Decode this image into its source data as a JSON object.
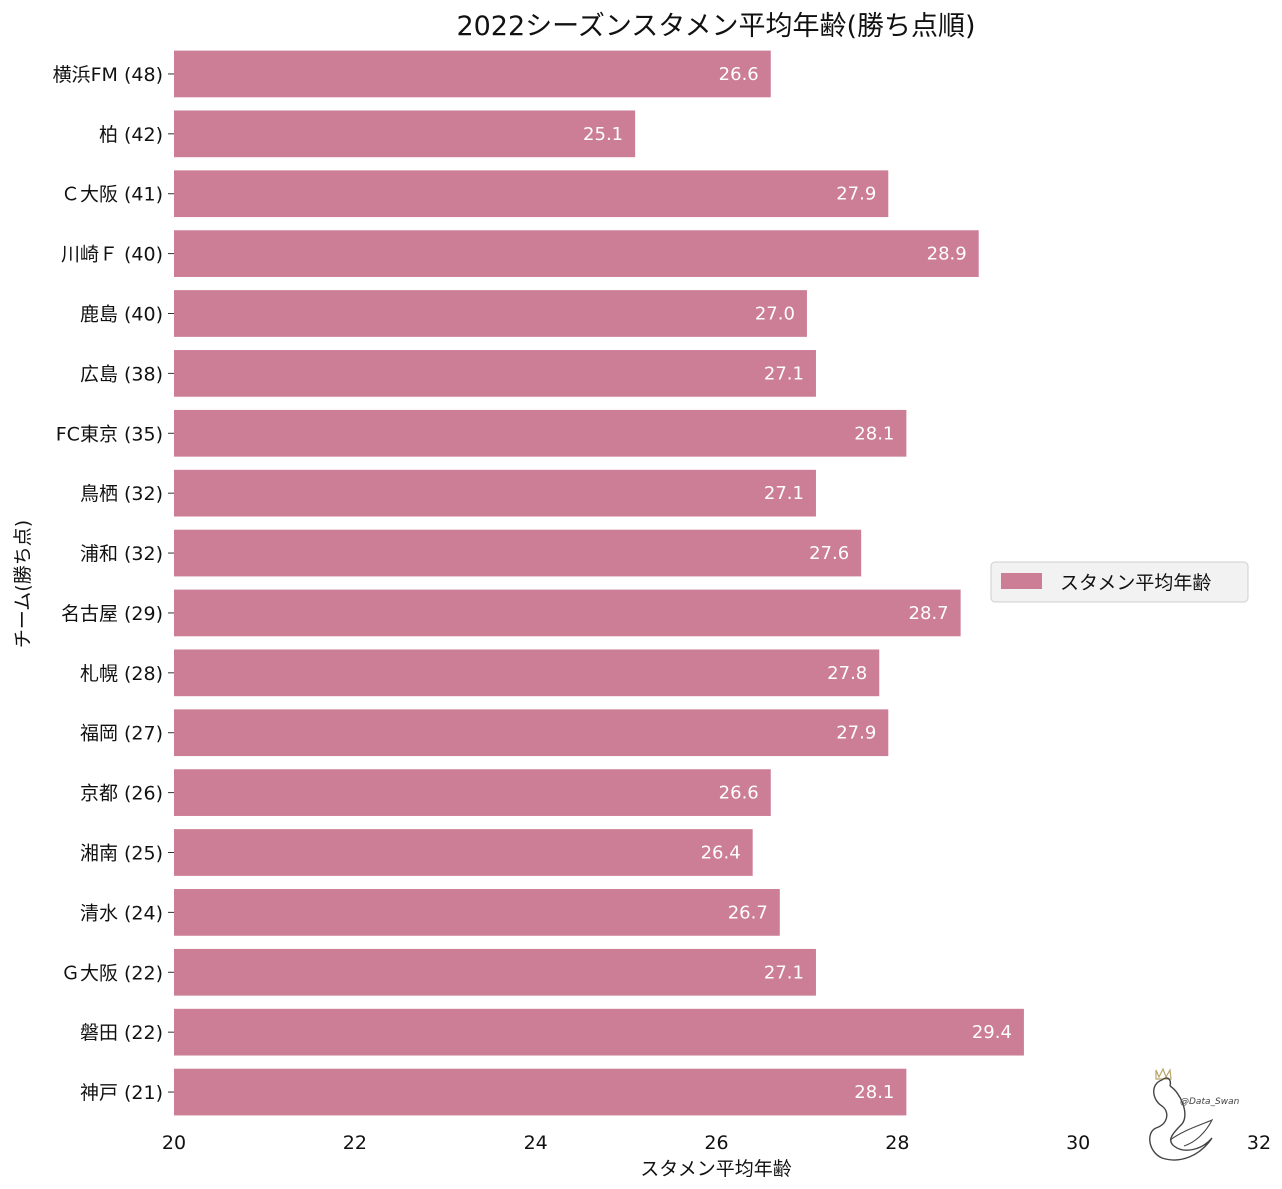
{
  "chart_data": {
    "type": "bar",
    "orientation": "horizontal",
    "title": "2022シーズンスタメン平均年齢(勝ち点順)",
    "xlabel": "スタメン平均年齢",
    "ylabel": "チーム(勝ち点)",
    "xlim": [
      20,
      32
    ],
    "xticks": [
      "20",
      "22",
      "24",
      "26",
      "28",
      "30",
      "32"
    ],
    "grid": false,
    "legend_position": "right",
    "categories": [
      "横浜FM (48)",
      "柏 (42)",
      "Ｃ大阪 (41)",
      "川崎Ｆ (40)",
      "鹿島 (40)",
      "広島 (38)",
      "FC東京 (35)",
      "鳥栖 (32)",
      "浦和 (32)",
      "名古屋 (29)",
      "札幌 (28)",
      "福岡 (27)",
      "京都 (26)",
      "湘南 (25)",
      "清水 (24)",
      "Ｇ大阪 (22)",
      "磐田 (22)",
      "神戸 (21)"
    ],
    "series": [
      {
        "name": "スタメン平均年齢",
        "color": "#cc7e96",
        "values": [
          26.6,
          25.1,
          27.9,
          28.9,
          27.0,
          27.1,
          28.1,
          27.1,
          27.6,
          28.7,
          27.8,
          27.9,
          26.6,
          26.4,
          26.7,
          27.1,
          29.4,
          28.1
        ],
        "labels": [
          "26.6",
          "25.1",
          "27.9",
          "28.9",
          "27.0",
          "27.1",
          "28.1",
          "27.1",
          "27.6",
          "28.7",
          "27.8",
          "27.9",
          "26.6",
          "26.4",
          "26.7",
          "27.1",
          "29.4",
          "28.1"
        ]
      }
    ]
  },
  "watermark": {
    "text": "@Data_Swan",
    "icon": "swan-logo-icon"
  }
}
